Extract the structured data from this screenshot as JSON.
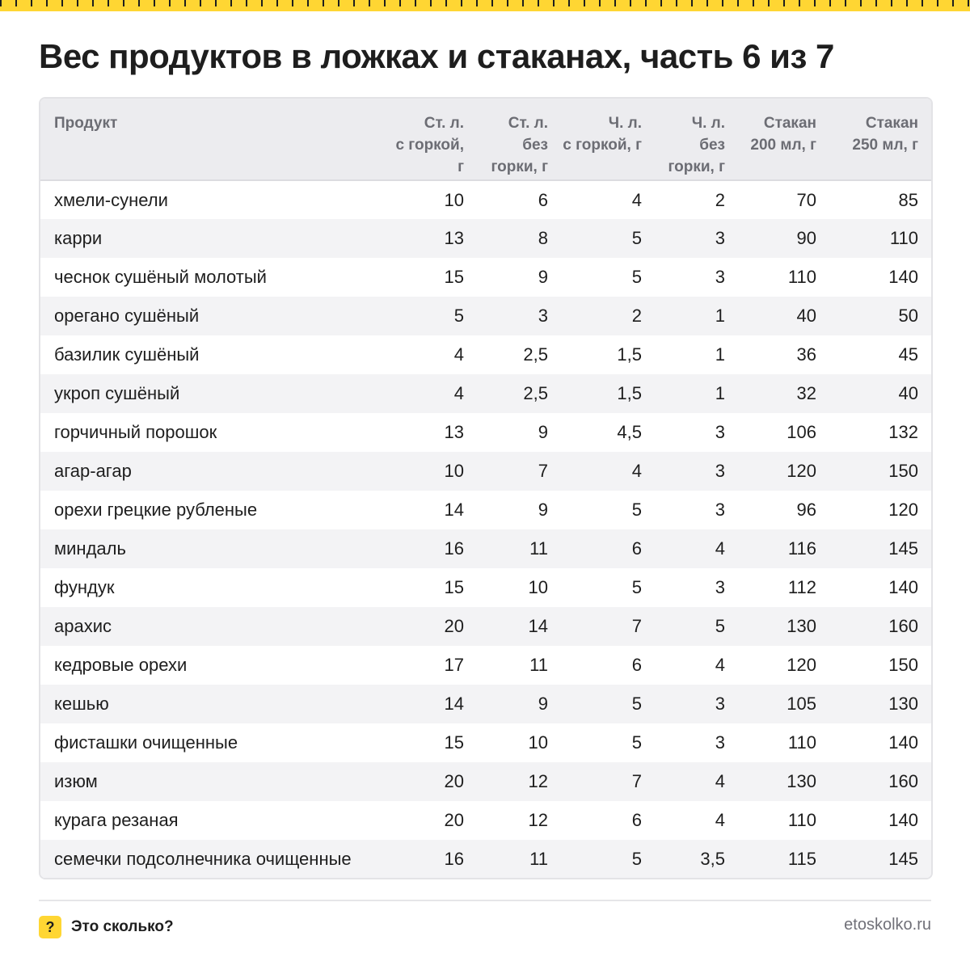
{
  "title": "Вес продуктов в ложках и стаканах, часть 6 из 7",
  "table": {
    "columns": [
      [
        "Продукт"
      ],
      [
        "Ст. л.",
        "с горкой, г"
      ],
      [
        "Ст. л.",
        "без",
        "горки, г"
      ],
      [
        "Ч. л.",
        "с горкой, г"
      ],
      [
        "Ч. л.",
        "без",
        "горки, г"
      ],
      [
        "Стакан",
        "200 мл, г"
      ],
      [
        "Стакан",
        "250 мл, г"
      ]
    ],
    "rows": [
      [
        "хмели-сунели",
        "10",
        "6",
        "4",
        "2",
        "70",
        "85"
      ],
      [
        "карри",
        "13",
        "8",
        "5",
        "3",
        "90",
        "110"
      ],
      [
        "чеснок сушёный молотый",
        "15",
        "9",
        "5",
        "3",
        "110",
        "140"
      ],
      [
        "орегано сушёный",
        "5",
        "3",
        "2",
        "1",
        "40",
        "50"
      ],
      [
        "базилик сушёный",
        "4",
        "2,5",
        "1,5",
        "1",
        "36",
        "45"
      ],
      [
        "укроп сушёный",
        "4",
        "2,5",
        "1,5",
        "1",
        "32",
        "40"
      ],
      [
        "горчичный порошок",
        "13",
        "9",
        "4,5",
        "3",
        "106",
        "132"
      ],
      [
        "агар-агар",
        "10",
        "7",
        "4",
        "3",
        "120",
        "150"
      ],
      [
        "орехи грецкие рубленые",
        "14",
        "9",
        "5",
        "3",
        "96",
        "120"
      ],
      [
        "миндаль",
        "16",
        "11",
        "6",
        "4",
        "116",
        "145"
      ],
      [
        "фундук",
        "15",
        "10",
        "5",
        "3",
        "112",
        "140"
      ],
      [
        "арахис",
        "20",
        "14",
        "7",
        "5",
        "130",
        "160"
      ],
      [
        "кедровые орехи",
        "17",
        "11",
        "6",
        "4",
        "120",
        "150"
      ],
      [
        "кешью",
        "14",
        "9",
        "5",
        "3",
        "105",
        "130"
      ],
      [
        "фисташки очищенные",
        "15",
        "10",
        "5",
        "3",
        "110",
        "140"
      ],
      [
        "изюм",
        "20",
        "12",
        "7",
        "4",
        "130",
        "160"
      ],
      [
        "курага резаная",
        "20",
        "12",
        "6",
        "4",
        "110",
        "140"
      ],
      [
        "семечки подсолнечника очищенные",
        "16",
        "11",
        "5",
        "3,5",
        "115",
        "145"
      ]
    ]
  },
  "footer": {
    "logo_glyph": "?",
    "brand_name": "Это сколько?",
    "site": "etoskolko.ru"
  },
  "colors": {
    "accent_yellow": "#ffd633",
    "header_bg": "#ececef",
    "stripe_bg": "#f3f3f5",
    "text": "#1e1e1e",
    "muted_text": "#6c6d74"
  },
  "icons": {
    "logo": "question-mark-icon"
  }
}
